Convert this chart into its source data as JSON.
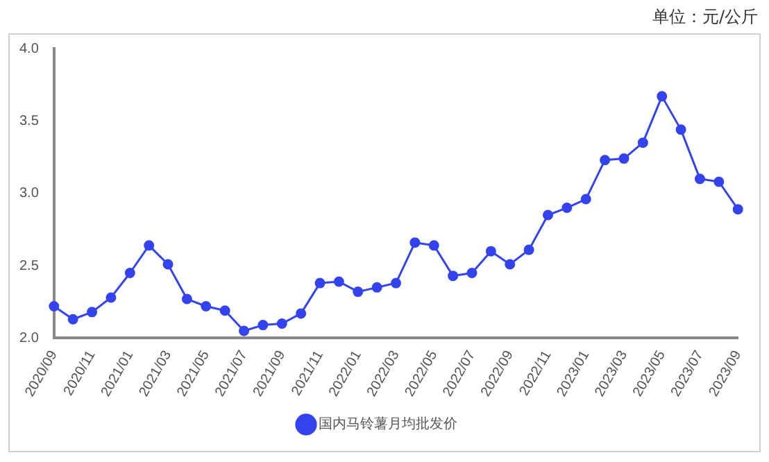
{
  "chart_data": {
    "type": "line",
    "annotations": [
      "单位：元/公斤"
    ],
    "categories": [
      "2020/09",
      null,
      "2020/11",
      null,
      "2021/01",
      null,
      "2021/03",
      null,
      "2021/05",
      null,
      "2021/07",
      null,
      "2021/09",
      null,
      "2021/11",
      null,
      "2022/01",
      null,
      "2022/03",
      null,
      "2022/05",
      null,
      "2022/07",
      null,
      "2022/09",
      null,
      "2022/11",
      null,
      "2023/01",
      null,
      "2023/03",
      null,
      "2023/05",
      null,
      "2023/07",
      null,
      "2023/09"
    ],
    "series": [
      {
        "name": "国内马铃薯月均批发价",
        "color": "#3344ee",
        "values": [
          2.22,
          2.13,
          2.18,
          2.28,
          2.45,
          2.64,
          2.51,
          2.27,
          2.22,
          2.19,
          2.05,
          2.09,
          2.1,
          2.17,
          2.38,
          2.39,
          2.32,
          2.35,
          2.38,
          2.66,
          2.64,
          2.43,
          2.45,
          2.6,
          2.51,
          2.61,
          2.85,
          2.9,
          2.96,
          3.23,
          3.24,
          3.35,
          3.67,
          3.44,
          3.1,
          3.08,
          2.89
        ]
      }
    ],
    "ylim": [
      2.0,
      4.0
    ],
    "yticks": [
      {
        "value": 2,
        "label": "2.0"
      },
      {
        "value": 2.5,
        "label": "2.5"
      },
      {
        "value": 3,
        "label": "3.0"
      },
      {
        "value": 3.5,
        "label": "3.5"
      },
      {
        "value": 4,
        "label": "4.0"
      }
    ],
    "grid": false,
    "legend": "bottom",
    "marker": "circle",
    "line_style": "solid"
  }
}
